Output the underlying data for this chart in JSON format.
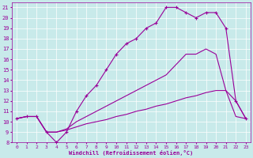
{
  "xlabel": "Windchill (Refroidissement éolien,°C)",
  "bg_color": "#c8eaea",
  "line_color": "#990099",
  "grid_color": "#ffffff",
  "xlim": [
    -0.5,
    23.5
  ],
  "ylim": [
    8,
    21.5
  ],
  "yticks": [
    8,
    9,
    10,
    11,
    12,
    13,
    14,
    15,
    16,
    17,
    18,
    19,
    20,
    21
  ],
  "xticks": [
    0,
    1,
    2,
    3,
    4,
    5,
    6,
    7,
    8,
    9,
    10,
    11,
    12,
    13,
    14,
    15,
    16,
    17,
    18,
    19,
    20,
    21,
    22,
    23
  ],
  "series": [
    {
      "x": [
        0,
        1,
        2,
        3,
        4,
        5,
        6,
        7,
        8,
        9,
        10,
        11,
        12,
        13,
        14,
        15,
        16,
        17,
        18,
        19,
        20,
        21,
        22,
        23
      ],
      "y": [
        10.3,
        10.5,
        10.5,
        9.0,
        9.0,
        9.2,
        9.5,
        9.8,
        10.0,
        10.2,
        10.5,
        10.7,
        11.0,
        11.2,
        11.5,
        11.7,
        12.0,
        12.3,
        12.5,
        12.8,
        13.0,
        13.0,
        10.5,
        10.3
      ],
      "marker": null,
      "linestyle": "-",
      "linewidth": 0.8
    },
    {
      "x": [
        0,
        1,
        2,
        3,
        4,
        5,
        6,
        7,
        8,
        9,
        10,
        11,
        12,
        13,
        14,
        15,
        16,
        17,
        18,
        19,
        20,
        21,
        22,
        23
      ],
      "y": [
        10.3,
        10.5,
        10.5,
        9.0,
        9.0,
        9.3,
        10.0,
        10.5,
        11.0,
        11.5,
        12.0,
        12.5,
        13.0,
        13.5,
        14.0,
        14.5,
        15.5,
        16.5,
        16.5,
        17.0,
        16.5,
        13.0,
        12.0,
        10.3
      ],
      "marker": null,
      "linestyle": "-",
      "linewidth": 0.8
    },
    {
      "x": [
        0,
        1,
        2,
        3,
        4,
        5,
        6,
        7,
        8,
        9,
        10,
        11,
        12,
        13,
        14,
        15,
        16,
        17,
        18,
        19,
        20,
        21,
        22,
        23
      ],
      "y": [
        10.3,
        10.5,
        10.5,
        9.0,
        8.0,
        9.0,
        11.0,
        12.5,
        13.5,
        15.0,
        16.5,
        17.5,
        18.0,
        19.0,
        19.5,
        21.0,
        21.0,
        20.5,
        20.0,
        20.5,
        20.5,
        19.0,
        12.0,
        10.3
      ],
      "marker": "+",
      "linestyle": "-",
      "linewidth": 0.8
    }
  ]
}
